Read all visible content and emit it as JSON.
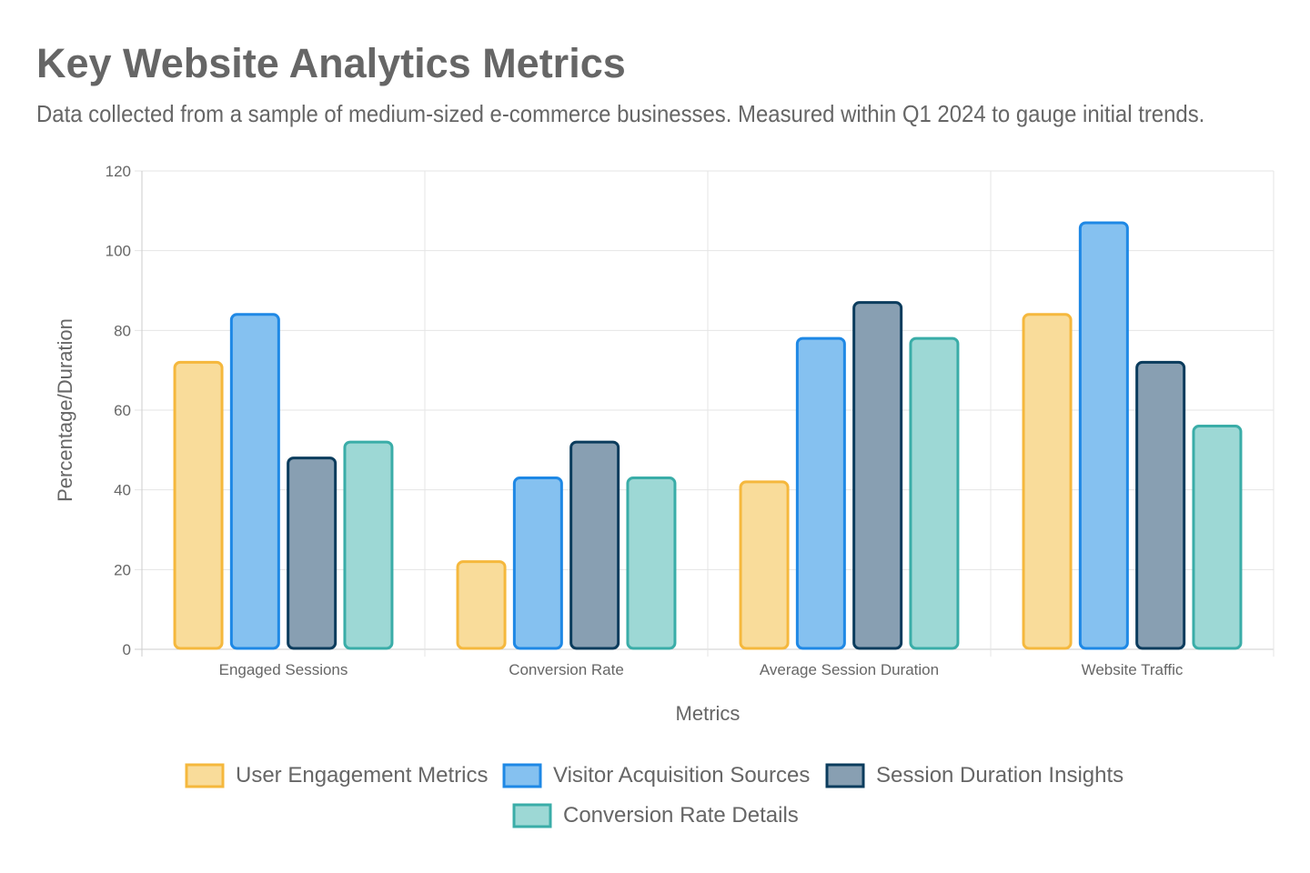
{
  "chart_data": {
    "type": "bar",
    "title": "Key Website Analytics Metrics",
    "subtitle": "Data collected from a sample of medium-sized e-commerce businesses. Measured within Q1 2024 to gauge initial trends.",
    "xlabel": "Metrics",
    "ylabel": "Percentage/Duration",
    "ylim": [
      0,
      120
    ],
    "yticks": [
      0,
      20,
      40,
      60,
      80,
      100,
      120
    ],
    "grid": true,
    "legend_position": "bottom",
    "categories": [
      "Engaged Sessions",
      "Conversion Rate",
      "Average Session Duration",
      "Website Traffic"
    ],
    "series": [
      {
        "name": "User Engagement Metrics",
        "values": [
          72,
          22,
          42,
          84
        ],
        "border": "#F5B83D",
        "fill": "#F9DC9A"
      },
      {
        "name": "Visitor Acquisition Sources",
        "values": [
          84,
          43,
          78,
          107
        ],
        "border": "#1E88E5",
        "fill": "#85C1F0"
      },
      {
        "name": "Session Duration Insights",
        "values": [
          48,
          52,
          87,
          72
        ],
        "border": "#0B3C5D",
        "fill": "#889FB2"
      },
      {
        "name": "Conversion Rate Details",
        "values": [
          52,
          43,
          78,
          56
        ],
        "border": "#3AADA8",
        "fill": "#9DD8D5"
      }
    ]
  }
}
